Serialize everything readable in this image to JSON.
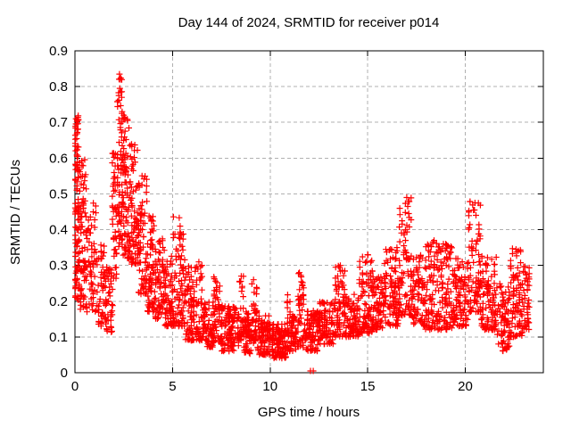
{
  "chart_data": {
    "type": "scatter",
    "title": "Day 144 of 2024, SRMTID for receiver p014",
    "xlabel": "GPS time / hours",
    "ylabel": "SRMTID / TECUs",
    "xlim": [
      0,
      24
    ],
    "ylim": [
      0,
      0.9
    ],
    "xticks": [
      0,
      5,
      10,
      15,
      20
    ],
    "yticks": [
      0,
      0.1,
      0.2,
      0.3,
      0.4,
      0.5,
      0.6,
      0.7,
      0.8,
      0.9
    ],
    "grid": true,
    "legend": "none",
    "marker": "plus",
    "marker_color": "#ff0000",
    "grid_color": "#b0b0b0",
    "frame_color": "#000000",
    "envelope_bins": [
      [
        0.0,
        0.2,
        0.42,
        0.72,
        55,
        0.7
      ],
      [
        0.0,
        0.25,
        0.2,
        0.45,
        45,
        1.0
      ],
      [
        0.2,
        0.6,
        0.28,
        0.62,
        55,
        1.2
      ],
      [
        0.25,
        0.6,
        0.17,
        0.3,
        25,
        1.0
      ],
      [
        0.6,
        1.1,
        0.17,
        0.48,
        60,
        1.4
      ],
      [
        1.1,
        1.6,
        0.13,
        0.38,
        55,
        1.3
      ],
      [
        1.6,
        1.95,
        0.11,
        0.3,
        40,
        1.2
      ],
      [
        1.9,
        2.15,
        0.25,
        0.62,
        45,
        1.1
      ],
      [
        2.15,
        2.45,
        0.35,
        0.84,
        70,
        1.2
      ],
      [
        2.45,
        2.8,
        0.32,
        0.73,
        70,
        1.3
      ],
      [
        2.8,
        3.25,
        0.3,
        0.64,
        75,
        1.3
      ],
      [
        3.25,
        3.7,
        0.22,
        0.56,
        70,
        1.3
      ],
      [
        3.7,
        4.1,
        0.17,
        0.44,
        65,
        1.3
      ],
      [
        4.1,
        4.6,
        0.15,
        0.38,
        70,
        1.4
      ],
      [
        4.6,
        5.0,
        0.13,
        0.33,
        65,
        1.3
      ],
      [
        5.0,
        5.65,
        0.13,
        0.44,
        90,
        1.6
      ],
      [
        5.65,
        6.2,
        0.09,
        0.3,
        75,
        1.5
      ],
      [
        6.2,
        6.55,
        0.09,
        0.31,
        45,
        1.7
      ],
      [
        6.55,
        7.1,
        0.07,
        0.22,
        70,
        1.2
      ],
      [
        7.1,
        7.5,
        0.08,
        0.27,
        55,
        1.5
      ],
      [
        7.5,
        8.4,
        0.06,
        0.19,
        110,
        1.2
      ],
      [
        8.4,
        8.65,
        0.09,
        0.27,
        30,
        1.6
      ],
      [
        8.65,
        9.05,
        0.05,
        0.17,
        55,
        1.1
      ],
      [
        9.05,
        9.35,
        0.08,
        0.26,
        40,
        1.6
      ],
      [
        9.35,
        9.95,
        0.05,
        0.16,
        80,
        1.2
      ],
      [
        9.95,
        10.85,
        0.04,
        0.14,
        115,
        1.1
      ],
      [
        10.85,
        11.05,
        0.06,
        0.22,
        25,
        1.5
      ],
      [
        11.05,
        11.35,
        0.06,
        0.16,
        40,
        1.1
      ],
      [
        11.35,
        11.75,
        0.07,
        0.28,
        50,
        1.6
      ],
      [
        11.75,
        12.45,
        0.06,
        0.18,
        85,
        1.2
      ],
      [
        12.45,
        13.25,
        0.08,
        0.2,
        100,
        1.2
      ],
      [
        13.25,
        13.85,
        0.1,
        0.3,
        75,
        1.5
      ],
      [
        13.85,
        14.55,
        0.1,
        0.22,
        85,
        1.2
      ],
      [
        14.55,
        15.25,
        0.11,
        0.33,
        90,
        1.5
      ],
      [
        15.25,
        15.85,
        0.12,
        0.27,
        75,
        1.3
      ],
      [
        15.85,
        16.6,
        0.13,
        0.35,
        95,
        1.4
      ],
      [
        16.6,
        17.25,
        0.16,
        0.49,
        85,
        1.7
      ],
      [
        17.25,
        17.95,
        0.13,
        0.33,
        85,
        1.4
      ],
      [
        17.95,
        18.65,
        0.12,
        0.37,
        85,
        1.5
      ],
      [
        18.65,
        19.35,
        0.12,
        0.36,
        85,
        1.5
      ],
      [
        19.35,
        20.15,
        0.13,
        0.32,
        95,
        1.4
      ],
      [
        20.15,
        20.8,
        0.17,
        0.48,
        85,
        1.7
      ],
      [
        20.8,
        21.6,
        0.12,
        0.33,
        95,
        1.5
      ],
      [
        21.6,
        22.3,
        0.06,
        0.25,
        80,
        1.3
      ],
      [
        22.3,
        22.95,
        0.1,
        0.35,
        80,
        1.5
      ],
      [
        22.95,
        23.3,
        0.12,
        0.3,
        45,
        1.3
      ]
    ],
    "feature_points": [
      [
        0.05,
        0.71
      ],
      [
        0.09,
        0.695
      ],
      [
        0.13,
        0.68
      ],
      [
        2.28,
        0.835
      ],
      [
        2.33,
        0.82
      ],
      [
        2.3,
        0.795
      ],
      [
        2.36,
        0.785
      ],
      [
        2.25,
        0.775
      ],
      [
        2.42,
        0.73
      ],
      [
        2.5,
        0.72
      ],
      [
        5.45,
        0.385
      ],
      [
        6.35,
        0.31
      ],
      [
        8.52,
        0.27
      ],
      [
        9.15,
        0.26
      ],
      [
        11.5,
        0.28
      ],
      [
        13.6,
        0.3
      ],
      [
        15.0,
        0.33
      ],
      [
        16.5,
        0.35
      ],
      [
        17.0,
        0.49
      ],
      [
        17.05,
        0.465
      ],
      [
        17.1,
        0.445
      ],
      [
        18.4,
        0.37
      ],
      [
        19.0,
        0.36
      ],
      [
        20.5,
        0.475
      ],
      [
        20.47,
        0.455
      ],
      [
        20.55,
        0.44
      ],
      [
        22.6,
        0.345
      ]
    ],
    "near_zero_points": [
      [
        12.07,
        0.005
      ],
      [
        12.21,
        0.005
      ]
    ]
  }
}
